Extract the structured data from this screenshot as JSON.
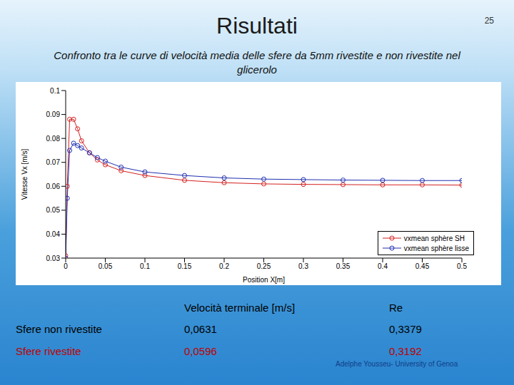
{
  "slide": {
    "title": "Risultati",
    "page_number": "25",
    "subtitle": "Confronto tra le curve di velocità media delle sfere da 5mm rivestite e non rivestite nel glicerolo",
    "footer": "Adelphe Yousseu- University of Genoa"
  },
  "chart_data": {
    "type": "line",
    "x_label": "Position X[m]",
    "y_label": "Vitesse Vx [m/s]",
    "x": [
      0,
      0.002,
      0.005,
      0.01,
      0.015,
      0.02,
      0.03,
      0.04,
      0.05,
      0.07,
      0.1,
      0.15,
      0.2,
      0.25,
      0.3,
      0.35,
      0.4,
      0.45,
      0.5
    ],
    "series": [
      {
        "name": "vxmean sphère SH",
        "color": "#d42020",
        "values": [
          0.031,
          0.06,
          0.088,
          0.088,
          0.084,
          0.079,
          0.074,
          0.071,
          0.069,
          0.0665,
          0.0645,
          0.0625,
          0.0615,
          0.061,
          0.0608,
          0.0607,
          0.0606,
          0.0606,
          0.0605
        ]
      },
      {
        "name": "vxmean sphère lisse",
        "color": "#1f2fb0",
        "values": [
          0.03,
          0.055,
          0.075,
          0.078,
          0.077,
          0.076,
          0.074,
          0.072,
          0.0705,
          0.068,
          0.066,
          0.0645,
          0.0635,
          0.063,
          0.0628,
          0.0626,
          0.0625,
          0.0624,
          0.0624
        ]
      }
    ],
    "xlim": [
      0,
      0.5
    ],
    "xticks": [
      0,
      0.05,
      0.1,
      0.15,
      0.2,
      0.25,
      0.3,
      0.35,
      0.4,
      0.45,
      0.5
    ],
    "ylim": [
      0.03,
      0.1
    ],
    "yticks": [
      0.03,
      0.04,
      0.05,
      0.06,
      0.07,
      0.08,
      0.09,
      0.1
    ],
    "grid": false,
    "legend": "lower right",
    "marker": "circle",
    "line_style": "solid"
  },
  "table": {
    "header": [
      "",
      "Velocità terminale [m/s]",
      "Re"
    ],
    "rows": [
      {
        "cells": [
          "Sfere non rivestite",
          "0,0631",
          "0,3379"
        ],
        "color": "#000000"
      },
      {
        "cells": [
          "Sfere rivestite",
          "0,0596",
          "0,3192"
        ],
        "color": "#c00000"
      }
    ]
  }
}
